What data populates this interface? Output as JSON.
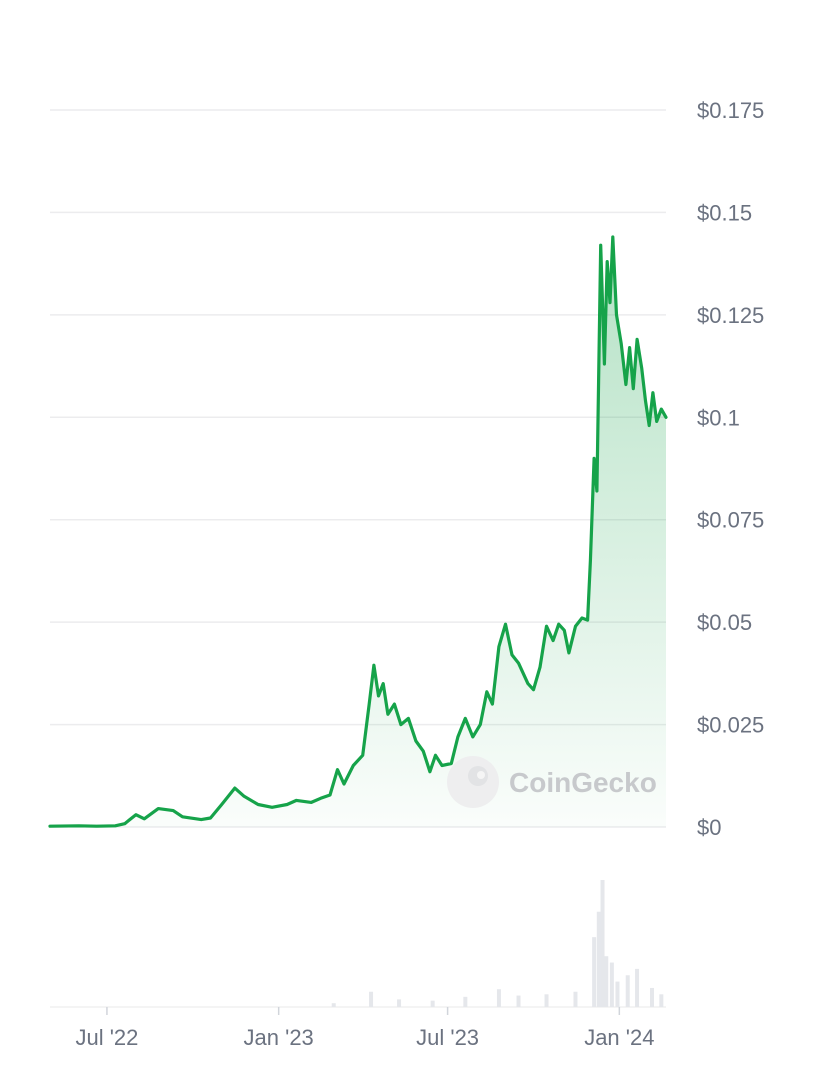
{
  "chart_data": {
    "type": "area",
    "title": "",
    "xlabel": "",
    "ylabel": "",
    "x_range": [
      "2022-05-01",
      "2024-02-20"
    ],
    "ylim": [
      0,
      0.175
    ],
    "y_ticks": [
      0,
      0.025,
      0.05,
      0.075,
      0.1,
      0.125,
      0.15,
      0.175
    ],
    "y_tick_labels": [
      "$0",
      "$0.025",
      "$0.05",
      "$0.075",
      "$0.1",
      "$0.125",
      "$0.15",
      "$0.175"
    ],
    "x_ticks": [
      "2022-07-01",
      "2023-01-01",
      "2023-07-01",
      "2024-01-01"
    ],
    "x_tick_labels": [
      "Jul '22",
      "Jan '23",
      "Jul '23",
      "Jan '24"
    ],
    "grid": true,
    "line_color": "#16a34a",
    "fill_color": "#16a34a",
    "volume_color": "#e5e7eb",
    "watermark": "CoinGecko",
    "series": [
      {
        "points": [
          [
            "2022-05-01",
            0.0002
          ],
          [
            "2022-06-01",
            0.0003
          ],
          [
            "2022-06-20",
            0.0002
          ],
          [
            "2022-07-10",
            0.0003
          ],
          [
            "2022-07-20",
            0.0008
          ],
          [
            "2022-08-01",
            0.003
          ],
          [
            "2022-08-10",
            0.002
          ],
          [
            "2022-08-25",
            0.0045
          ],
          [
            "2022-09-10",
            0.004
          ],
          [
            "2022-09-20",
            0.0025
          ],
          [
            "2022-10-10",
            0.0018
          ],
          [
            "2022-10-20",
            0.0022
          ],
          [
            "2022-11-01",
            0.0055
          ],
          [
            "2022-11-15",
            0.0095
          ],
          [
            "2022-11-25",
            0.0075
          ],
          [
            "2022-12-10",
            0.0055
          ],
          [
            "2022-12-25",
            0.0048
          ],
          [
            "2023-01-10",
            0.0055
          ],
          [
            "2023-01-20",
            0.0065
          ],
          [
            "2023-02-05",
            0.006
          ],
          [
            "2023-02-15",
            0.007
          ],
          [
            "2023-02-25",
            0.0078
          ],
          [
            "2023-03-05",
            0.014
          ],
          [
            "2023-03-12",
            0.0105
          ],
          [
            "2023-03-22",
            0.015
          ],
          [
            "2023-04-01",
            0.0175
          ],
          [
            "2023-04-08",
            0.03
          ],
          [
            "2023-04-13",
            0.0395
          ],
          [
            "2023-04-18",
            0.032
          ],
          [
            "2023-04-23",
            0.035
          ],
          [
            "2023-04-28",
            0.0275
          ],
          [
            "2023-05-05",
            0.03
          ],
          [
            "2023-05-12",
            0.025
          ],
          [
            "2023-05-20",
            0.0265
          ],
          [
            "2023-05-28",
            0.021
          ],
          [
            "2023-06-05",
            0.0185
          ],
          [
            "2023-06-12",
            0.0135
          ],
          [
            "2023-06-18",
            0.0175
          ],
          [
            "2023-06-25",
            0.015
          ],
          [
            "2023-07-05",
            0.0155
          ],
          [
            "2023-07-12",
            0.022
          ],
          [
            "2023-07-20",
            0.0265
          ],
          [
            "2023-07-28",
            0.022
          ],
          [
            "2023-08-05",
            0.025
          ],
          [
            "2023-08-12",
            0.033
          ],
          [
            "2023-08-18",
            0.03
          ],
          [
            "2023-08-25",
            0.044
          ],
          [
            "2023-09-01",
            0.0495
          ],
          [
            "2023-09-08",
            0.042
          ],
          [
            "2023-09-15",
            0.04
          ],
          [
            "2023-09-25",
            0.035
          ],
          [
            "2023-10-01",
            0.0335
          ],
          [
            "2023-10-08",
            0.039
          ],
          [
            "2023-10-15",
            0.049
          ],
          [
            "2023-10-22",
            0.0455
          ],
          [
            "2023-10-28",
            0.0495
          ],
          [
            "2023-11-03",
            0.048
          ],
          [
            "2023-11-08",
            0.0425
          ],
          [
            "2023-11-15",
            0.049
          ],
          [
            "2023-11-22",
            0.051
          ],
          [
            "2023-11-28",
            0.0505
          ],
          [
            "2023-12-01",
            0.065
          ],
          [
            "2023-12-05",
            0.09
          ],
          [
            "2023-12-08",
            0.082
          ],
          [
            "2023-12-12",
            0.142
          ],
          [
            "2023-12-16",
            0.113
          ],
          [
            "2023-12-19",
            0.138
          ],
          [
            "2023-12-22",
            0.128
          ],
          [
            "2023-12-25",
            0.144
          ],
          [
            "2023-12-29",
            0.125
          ],
          [
            "2024-01-03",
            0.118
          ],
          [
            "2024-01-08",
            0.108
          ],
          [
            "2024-01-12",
            0.117
          ],
          [
            "2024-01-16",
            0.107
          ],
          [
            "2024-01-20",
            0.119
          ],
          [
            "2024-01-25",
            0.112
          ],
          [
            "2024-01-29",
            0.104
          ],
          [
            "2024-02-02",
            0.098
          ],
          [
            "2024-02-06",
            0.106
          ],
          [
            "2024-02-10",
            0.099
          ],
          [
            "2024-02-15",
            0.102
          ],
          [
            "2024-02-20",
            0.1
          ]
        ]
      }
    ],
    "volume": [
      [
        "2023-03-01",
        0.03
      ],
      [
        "2023-04-10",
        0.12
      ],
      [
        "2023-05-10",
        0.06
      ],
      [
        "2023-06-15",
        0.05
      ],
      [
        "2023-07-20",
        0.08
      ],
      [
        "2023-08-25",
        0.14
      ],
      [
        "2023-09-15",
        0.09
      ],
      [
        "2023-10-15",
        0.1
      ],
      [
        "2023-11-15",
        0.12
      ],
      [
        "2023-12-05",
        0.55
      ],
      [
        "2023-12-10",
        0.75
      ],
      [
        "2023-12-14",
        1.0
      ],
      [
        "2023-12-18",
        0.4
      ],
      [
        "2023-12-24",
        0.35
      ],
      [
        "2023-12-30",
        0.2
      ],
      [
        "2024-01-10",
        0.25
      ],
      [
        "2024-01-20",
        0.3
      ],
      [
        "2024-02-05",
        0.15
      ],
      [
        "2024-02-15",
        0.1
      ]
    ]
  }
}
